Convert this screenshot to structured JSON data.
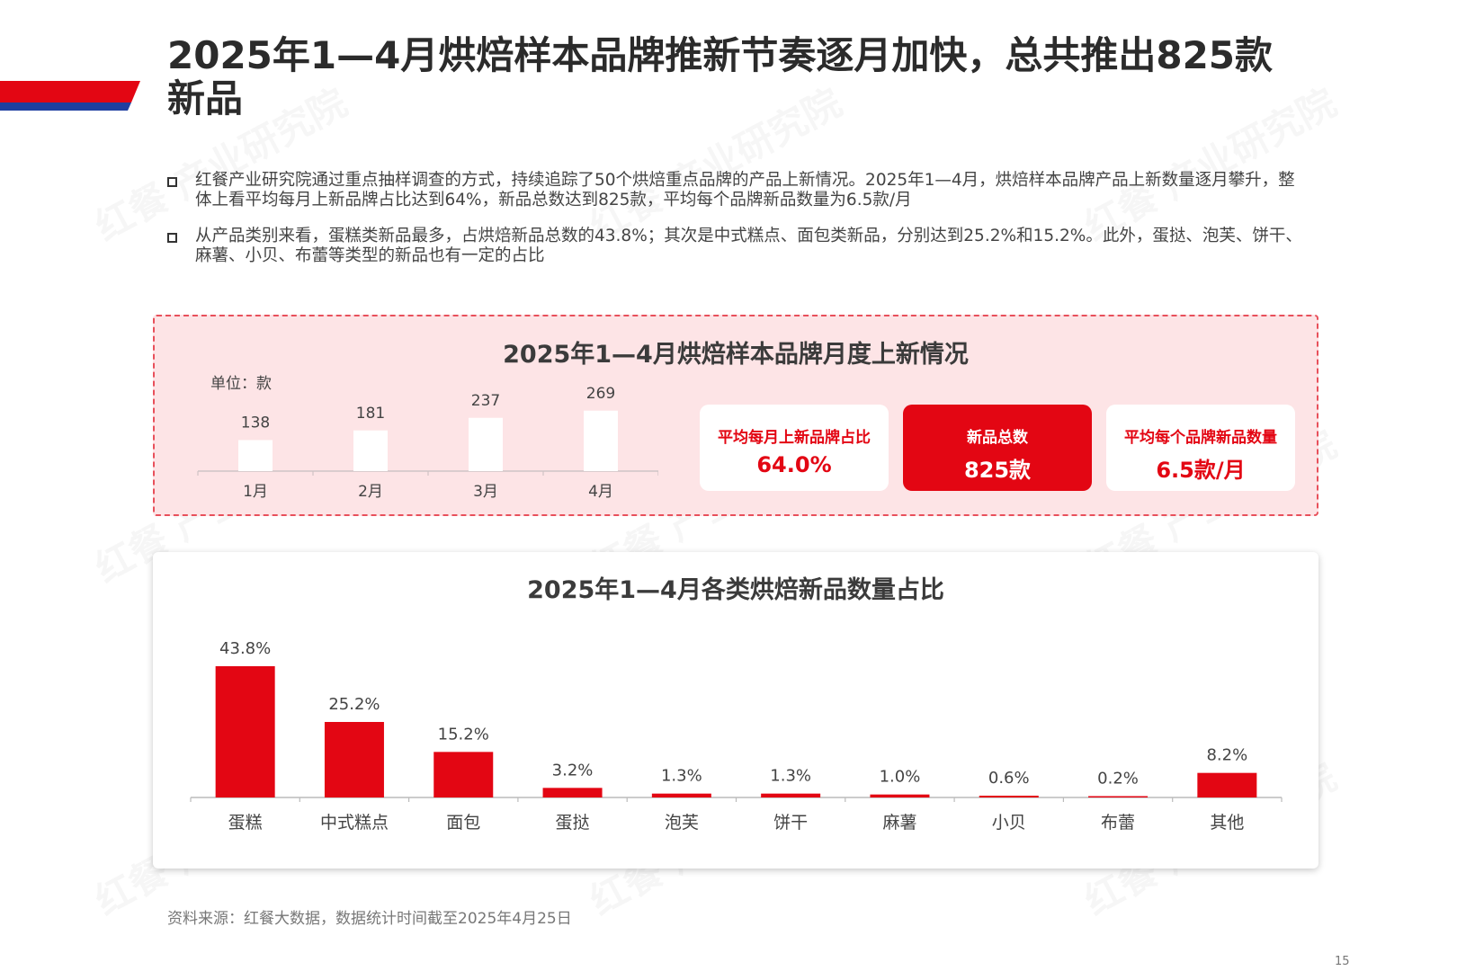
{
  "title": "2025年1—4月烘焙样本品牌推新节奏逐月加快，总共推出825款新品",
  "bullets": [
    "红餐产业研究院通过重点抽样调查的方式，持续追踪了50个烘焙重点品牌的产品上新情况。2025年1—4月，烘焙样本品牌产品上新数量逐月攀升，整体上看平均每月上新品牌占比达到64%，新品总数达到825款，平均每个品牌新品数量为6.5款/月",
    "从产品类别来看，蛋糕类新品最多，占烘焙新品总数的43.8%；其次是中式糕点、面包类新品，分别达到25.2%和15.2%。此外，蛋挞、泡芙、饼干、麻薯、小贝、布蕾等类型的新品也有一定的占比"
  ],
  "watermark": "红餐 产业研究院",
  "monthly_panel": {
    "title": "2025年1—4月烘焙样本品牌月度上新情况",
    "unit": "单位：款",
    "kpis": [
      {
        "label": "平均每月上新品牌占比",
        "value": "64.0%"
      },
      {
        "label": "新品总数",
        "value": "825款"
      },
      {
        "label": "平均每个品牌新品数量",
        "value": "6.5款/月"
      }
    ]
  },
  "category_panel": {
    "title": "2025年1—4月各类烘焙新品数量占比"
  },
  "source": "资料来源：红餐大数据，数据统计时间截至2025年4月25日",
  "page_number": "15",
  "colors": {
    "accent_red": "#e30613",
    "accent_blue": "#1f3fa0",
    "panel_pink": "#fde4e6"
  },
  "chart_data": [
    {
      "type": "bar",
      "title": "2025年1—4月烘焙样本品牌月度上新情况",
      "categories": [
        "1月",
        "2月",
        "3月",
        "4月"
      ],
      "values": [
        138,
        181,
        237,
        269
      ],
      "data_labels": [
        "138",
        "181",
        "237",
        "269"
      ],
      "ylabel": "单位：款",
      "ylim": [
        0,
        560
      ],
      "grid": false,
      "bar_color": "#ffffff"
    },
    {
      "type": "bar",
      "title": "2025年1—4月各类烘焙新品数量占比",
      "categories": [
        "蛋糕",
        "中式糕点",
        "面包",
        "蛋挞",
        "泡芙",
        "饼干",
        "麻薯",
        "小贝",
        "布蕾",
        "其他"
      ],
      "values": [
        43.8,
        25.2,
        15.2,
        3.2,
        1.3,
        1.3,
        1.0,
        0.6,
        0.2,
        8.2
      ],
      "data_labels": [
        "43.8%",
        "25.2%",
        "15.2%",
        "3.2%",
        "1.3%",
        "1.3%",
        "1.0%",
        "0.6%",
        "0.2%",
        "8.2%"
      ],
      "ylim": [
        0,
        45
      ],
      "grid": false,
      "bar_color": "#e30613"
    }
  ]
}
